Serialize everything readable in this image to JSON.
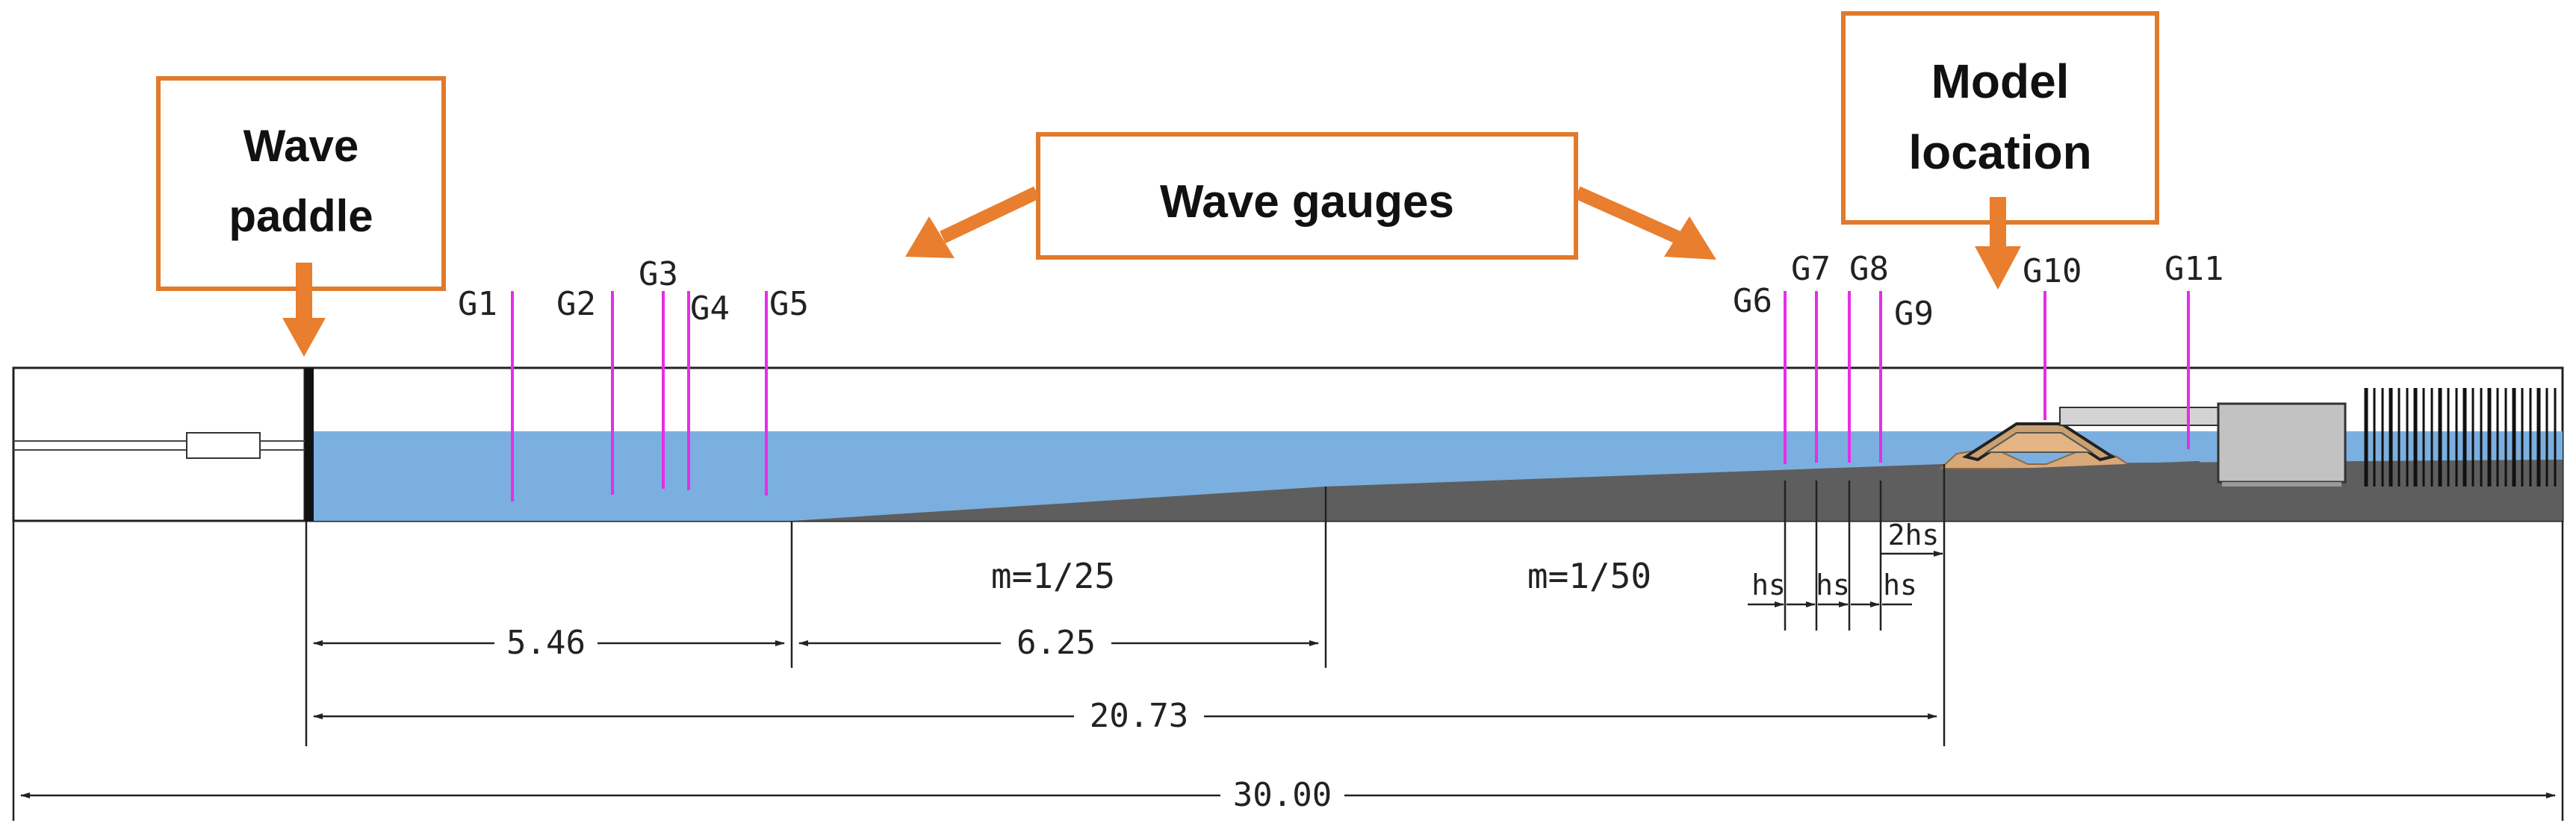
{
  "callouts": {
    "wave_paddle": [
      "Wave",
      "paddle"
    ],
    "wave_gauges": "Wave gauges",
    "model_location": [
      "Model",
      "location"
    ]
  },
  "gauges": {
    "G1": "G1",
    "G2": "G2",
    "G3": "G3",
    "G4": "G4",
    "G5": "G5",
    "G6": "G6",
    "G7": "G7",
    "G8": "G8",
    "G9": "G9",
    "G10": "G10",
    "G11": "G11"
  },
  "slopes": {
    "first": "m=1/25",
    "second": "m=1/50"
  },
  "dimensions": {
    "flat_section": "5.46",
    "slope_section": "6.25",
    "paddle_to_model": "20.73",
    "total_length": "30.00",
    "gauge_spacing": "hs",
    "model_gap": "2hs"
  },
  "colors": {
    "callout_border": "#E07A2C",
    "arrow": "#E87E2E",
    "water": "#7BAFDF",
    "bed": "#5E5E5E",
    "gauge": "#E62EE6",
    "model_core": "#D9A878"
  }
}
